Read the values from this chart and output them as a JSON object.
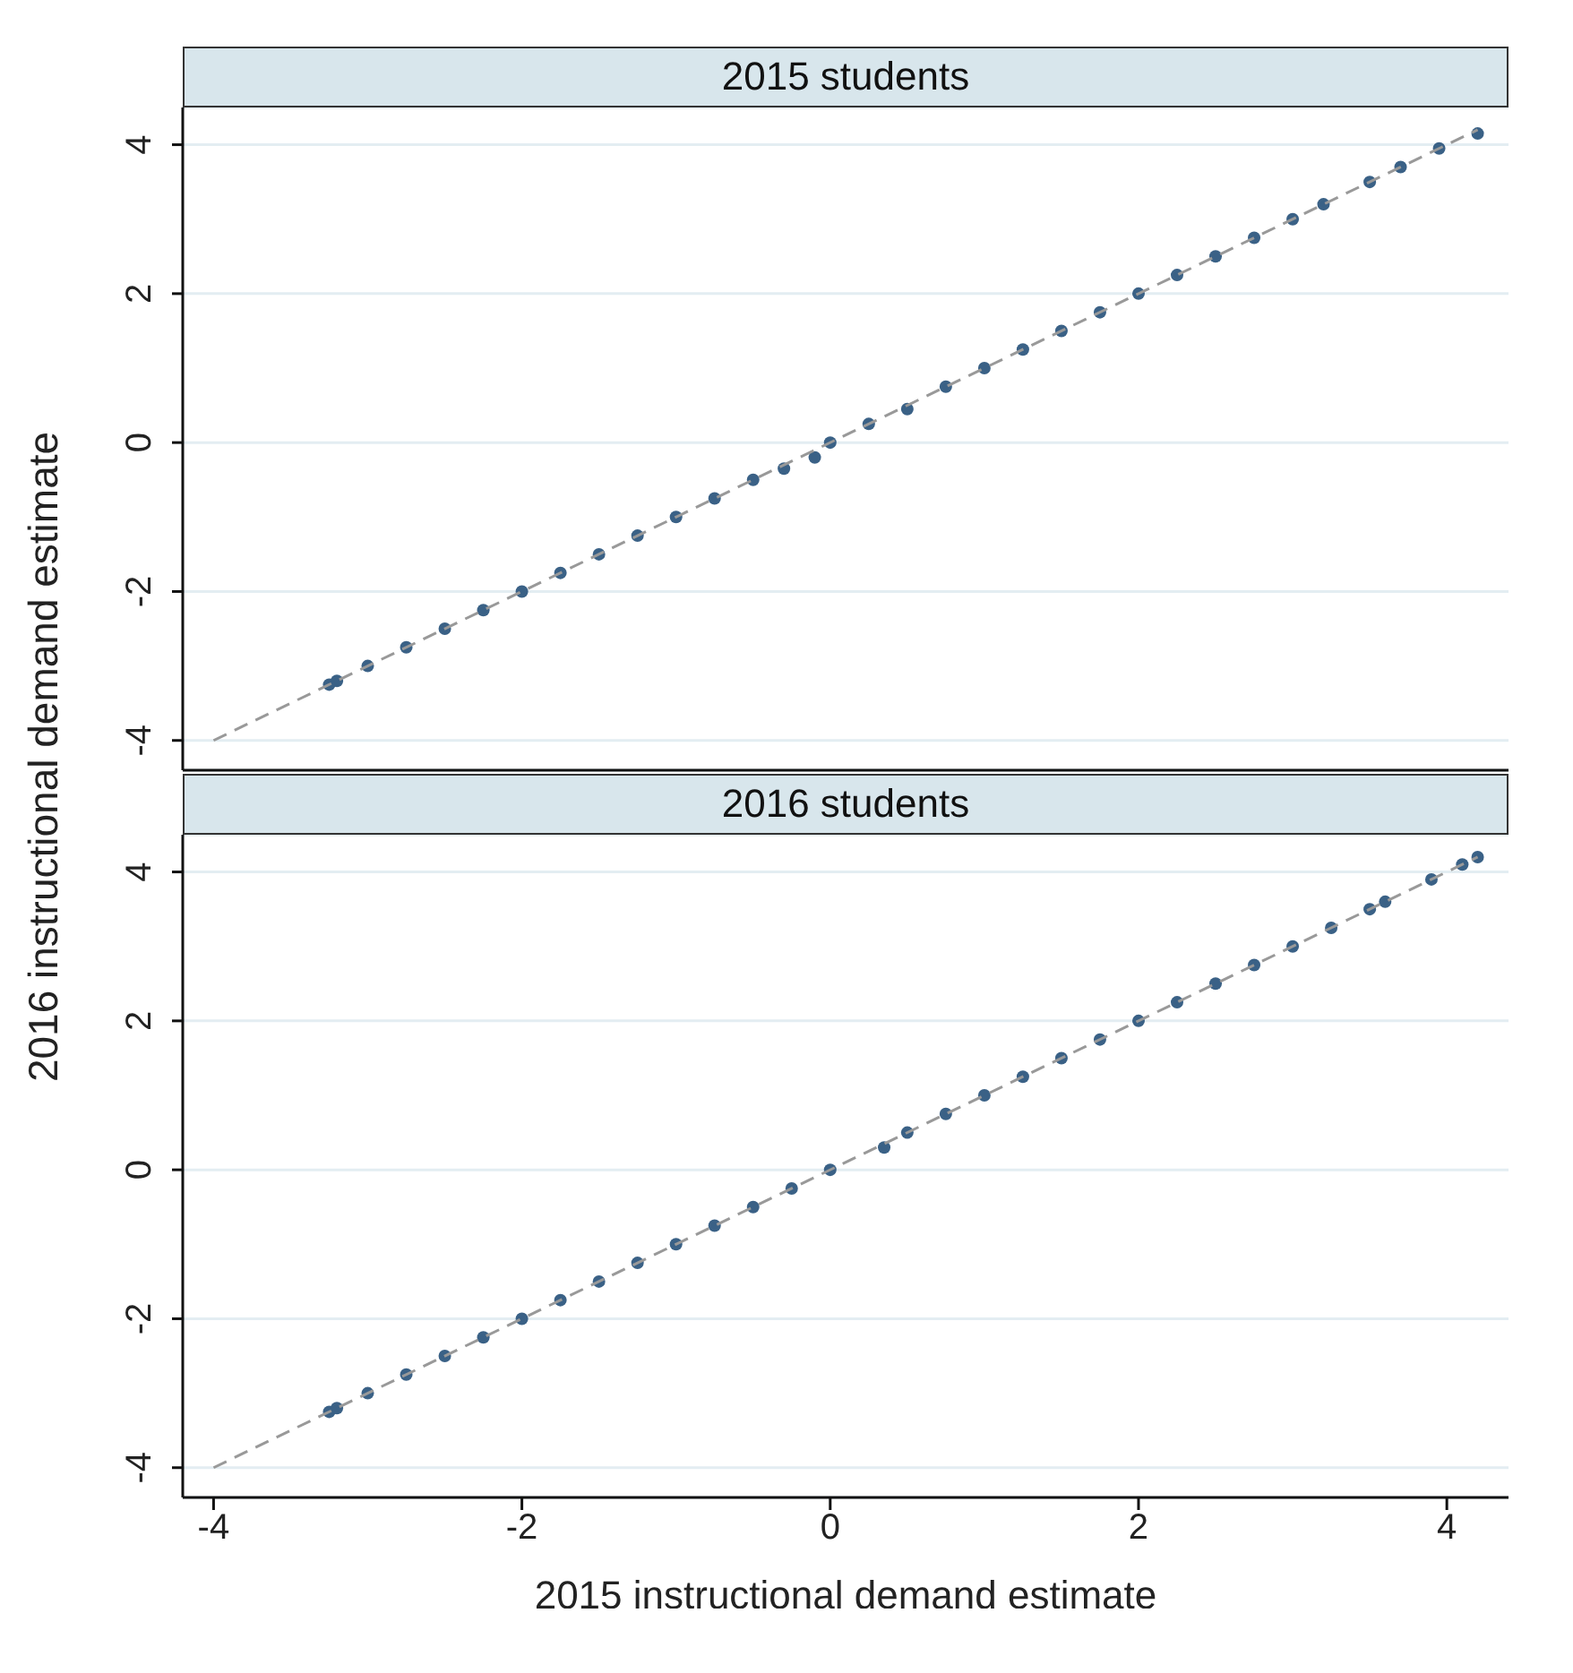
{
  "chart_data": [
    {
      "type": "scatter",
      "title": "2015 students",
      "ylabel": "2016 instructional demand estimate",
      "xlim": [
        -4.2,
        4.4
      ],
      "ylim": [
        -4.4,
        4.5
      ],
      "xticks": [
        -4,
        -2,
        0,
        2,
        4
      ],
      "yticks": [
        -4,
        -2,
        0,
        2,
        4
      ],
      "tick_labels": "y",
      "grid": "y",
      "marker": "circle",
      "series": [
        {
          "color": "#3a6186",
          "x": [
            -3.25,
            -3.2,
            -3.0,
            -2.75,
            -2.5,
            -2.25,
            -2.0,
            -1.75,
            -1.5,
            -1.25,
            -1.0,
            -0.75,
            -0.5,
            -0.3,
            -0.1,
            0,
            0.25,
            0.5,
            0.75,
            1.0,
            1.25,
            1.5,
            1.75,
            2.0,
            2.25,
            2.5,
            2.75,
            3.0,
            3.2,
            3.5,
            3.7,
            3.95,
            4.2
          ],
          "values": [
            -3.25,
            -3.2,
            -3.0,
            -2.75,
            -2.5,
            -2.25,
            -2.0,
            -1.75,
            -1.5,
            -1.25,
            -1.0,
            -0.75,
            -0.5,
            -0.35,
            -0.2,
            0,
            0.25,
            0.45,
            0.75,
            1.0,
            1.25,
            1.5,
            1.75,
            2.0,
            2.25,
            2.5,
            2.75,
            3.0,
            3.2,
            3.5,
            3.7,
            3.95,
            4.15
          ]
        },
        {
          "type": "line",
          "color": "#999999",
          "line_style": "dashed",
          "marker": "none",
          "x": [
            -4,
            4.2
          ],
          "values": [
            -4,
            4.2
          ]
        }
      ]
    },
    {
      "type": "scatter",
      "title": "2016 students",
      "xlabel": "2015 instructional demand estimate",
      "xlim": [
        -4.2,
        4.4
      ],
      "ylim": [
        -4.4,
        4.5
      ],
      "xticks": [
        -4,
        -2,
        0,
        2,
        4
      ],
      "yticks": [
        -4,
        -2,
        0,
        2,
        4
      ],
      "grid": "y",
      "marker": "circle",
      "series": [
        {
          "color": "#3a6186",
          "x": [
            -3.25,
            -3.2,
            -3.0,
            -2.75,
            -2.5,
            -2.25,
            -2.0,
            -1.75,
            -1.5,
            -1.25,
            -1.0,
            -0.75,
            -0.5,
            -0.25,
            0,
            0.35,
            0.5,
            0.75,
            1.0,
            1.25,
            1.5,
            1.75,
            2.0,
            2.25,
            2.5,
            2.75,
            3.0,
            3.25,
            3.5,
            3.6,
            3.9,
            4.1,
            4.2
          ],
          "values": [
            -3.25,
            -3.2,
            -3.0,
            -2.75,
            -2.5,
            -2.25,
            -2.0,
            -1.75,
            -1.5,
            -1.25,
            -1.0,
            -0.75,
            -0.5,
            -0.25,
            0,
            0.3,
            0.5,
            0.75,
            1.0,
            1.25,
            1.5,
            1.75,
            2.0,
            2.25,
            2.5,
            2.75,
            3.0,
            3.25,
            3.5,
            3.6,
            3.9,
            4.1,
            4.2
          ]
        },
        {
          "type": "line",
          "color": "#999999",
          "line_style": "dashed",
          "marker": "none",
          "x": [
            -4,
            4.2
          ],
          "values": [
            -4,
            4.2
          ]
        }
      ]
    }
  ]
}
